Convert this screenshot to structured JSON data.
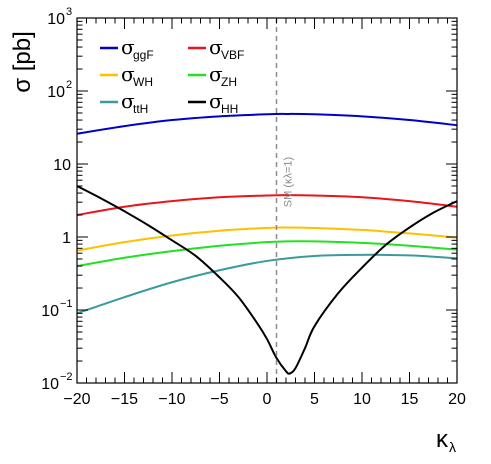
{
  "chart_data": {
    "type": "line",
    "xlabel": {
      "symbol": "κ",
      "sub": "λ"
    },
    "ylabel": "σ [pb]",
    "xlim": [
      -20,
      20
    ],
    "ylim": [
      0.01,
      1000
    ],
    "yscale": "log",
    "xticks": [
      -20,
      -15,
      -10,
      -5,
      0,
      5,
      10,
      15,
      20
    ],
    "xtick_labels": [
      "−20",
      "−15",
      "−10",
      "−5",
      "0",
      "5",
      "10",
      "15",
      "20"
    ],
    "yticks": [
      {
        "value": 0.01,
        "base": "10",
        "exp": "−2"
      },
      {
        "value": 0.1,
        "base": "10",
        "exp": "−1"
      },
      {
        "value": 1,
        "base": "1",
        "exp": ""
      },
      {
        "value": 10,
        "base": "10",
        "exp": ""
      },
      {
        "value": 100,
        "base": "10",
        "exp": "2"
      },
      {
        "value": 1000,
        "base": "10",
        "exp": "3"
      }
    ],
    "grid": false,
    "legend_position": "top-left",
    "reference_line": {
      "x": 1,
      "label": "SM (κλ=1)",
      "color": "#8c8c8c"
    },
    "series": [
      {
        "name_symbol": "σ",
        "name_sub": "ggF",
        "color": "#0000cc",
        "x": [
          -20,
          -15,
          -10,
          -5,
          0,
          2,
          5,
          10,
          15,
          20
        ],
        "y": [
          26,
          33,
          40,
          45,
          48,
          48.5,
          48,
          45,
          40,
          34
        ]
      },
      {
        "name_symbol": "σ",
        "name_sub": "VBF",
        "color": "#e8151b",
        "x": [
          -20,
          -15,
          -10,
          -5,
          0,
          2,
          5,
          10,
          15,
          20
        ],
        "y": [
          2.0,
          2.6,
          3.1,
          3.5,
          3.7,
          3.75,
          3.7,
          3.5,
          3.1,
          2.6
        ]
      },
      {
        "name_symbol": "σ",
        "name_sub": "WH",
        "color": "#ffc000",
        "x": [
          -20,
          -15,
          -10,
          -5,
          0,
          2,
          5,
          10,
          15,
          20
        ],
        "y": [
          0.65,
          0.85,
          1.05,
          1.22,
          1.33,
          1.35,
          1.33,
          1.25,
          1.12,
          0.98
        ]
      },
      {
        "name_symbol": "σ",
        "name_sub": "ZH",
        "color": "#22e022",
        "x": [
          -20,
          -15,
          -10,
          -5,
          0,
          2,
          5,
          10,
          15,
          20
        ],
        "y": [
          0.4,
          0.52,
          0.64,
          0.76,
          0.85,
          0.87,
          0.87,
          0.83,
          0.76,
          0.67
        ]
      },
      {
        "name_symbol": "σ",
        "name_sub": "ttH",
        "color": "#3c9a9a",
        "x": [
          -20,
          -15,
          -10,
          -5,
          0,
          5,
          10,
          15,
          20
        ],
        "y": [
          0.09,
          0.15,
          0.24,
          0.35,
          0.47,
          0.55,
          0.57,
          0.56,
          0.51
        ]
      },
      {
        "name_symbol": "σ",
        "name_sub": "HH",
        "color": "#000000",
        "x": [
          -20,
          -17.5,
          -15,
          -12.5,
          -10,
          -7.5,
          -5,
          -3,
          -1,
          0,
          1,
          2,
          2.4,
          3,
          4,
          5,
          7.5,
          10,
          12.5,
          15,
          17.5,
          20
        ],
        "y": [
          5.0,
          3.4,
          2.25,
          1.45,
          0.9,
          0.55,
          0.28,
          0.15,
          0.065,
          0.04,
          0.022,
          0.0145,
          0.0135,
          0.016,
          0.03,
          0.06,
          0.17,
          0.38,
          0.78,
          1.35,
          2.15,
          3.1
        ]
      }
    ]
  }
}
